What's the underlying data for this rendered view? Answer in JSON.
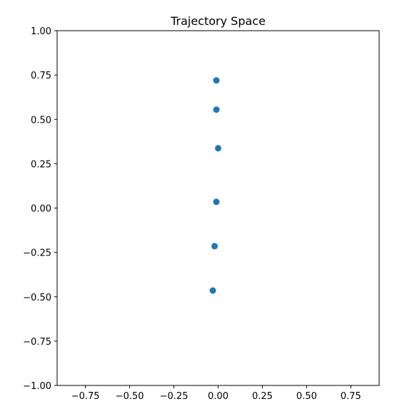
{
  "chart_data": {
    "type": "scatter",
    "title": "Trajectory Space",
    "xlabel": "",
    "ylabel": "",
    "xlim": [
      -0.91,
      0.91
    ],
    "ylim": [
      -1.0,
      1.0
    ],
    "xticks": [
      -0.75,
      -0.5,
      -0.25,
      0.0,
      0.25,
      0.5,
      0.75
    ],
    "xtick_labels": [
      "−0.75",
      "−0.50",
      "−0.25",
      "0.00",
      "0.25",
      "0.50",
      "0.75"
    ],
    "yticks": [
      -1.0,
      -0.75,
      -0.5,
      -0.25,
      0.0,
      0.25,
      0.5,
      0.75,
      1.0
    ],
    "ytick_labels": [
      "−1.00",
      "−0.75",
      "−0.50",
      "−0.25",
      "0.00",
      "0.25",
      "0.50",
      "0.75",
      "1.00"
    ],
    "grid": false,
    "legend": "none",
    "marker_color": "#1f77b4",
    "points": [
      {
        "x": -0.01,
        "y": 0.72
      },
      {
        "x": -0.01,
        "y": 0.555
      },
      {
        "x": 0.0,
        "y": 0.337
      },
      {
        "x": -0.01,
        "y": 0.035
      },
      {
        "x": -0.02,
        "y": -0.215
      },
      {
        "x": -0.03,
        "y": -0.465
      }
    ]
  }
}
